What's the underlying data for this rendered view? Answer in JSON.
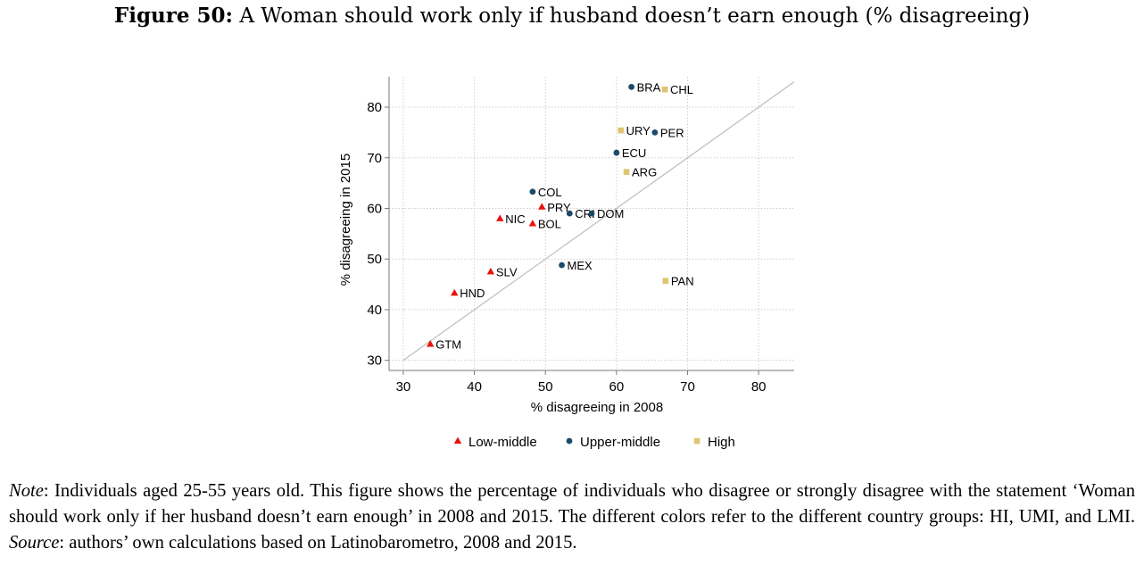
{
  "figure": {
    "label": "Figure 50:",
    "title": "A Woman should work only if husband doesn’t earn enough (% disagreeing)"
  },
  "note": {
    "note_label": "Note",
    "note_text": ": Individuals aged 25-55 years old. This figure shows the percentage of individuals who disagree or strongly disagree with the statement ‘Woman should work only if her husband doesn’t earn enough’ in 2008 and 2015. The different colors refer to the different country groups: HI, UMI, and LMI. ",
    "source_label": "Source",
    "source_text": ": authors’ own calculations based on Latinobarometro, 2008 and 2015."
  },
  "chart_data": {
    "type": "scatter",
    "xlabel": "% disagreeing in 2008",
    "ylabel": "% disagreeing in 2015",
    "xlim": [
      28,
      85
    ],
    "ylim": [
      28,
      86
    ],
    "xticks": [
      30,
      40,
      50,
      60,
      70,
      80
    ],
    "yticks": [
      30,
      40,
      50,
      60,
      70,
      80
    ],
    "grid": true,
    "reference_line": {
      "from": [
        30,
        30
      ],
      "to": [
        85,
        85
      ],
      "color": "#bdbdbd"
    },
    "legend_position": "bottom",
    "series": [
      {
        "name": "Low-middle",
        "marker": "triangle",
        "color": "#e8120f",
        "points": [
          {
            "label": "GTM",
            "x": 33.8,
            "y": 33.2
          },
          {
            "label": "HND",
            "x": 37.2,
            "y": 43.3
          },
          {
            "label": "SLV",
            "x": 42.3,
            "y": 47.5
          },
          {
            "label": "NIC",
            "x": 43.6,
            "y": 58.0
          },
          {
            "label": "BOL",
            "x": 48.2,
            "y": 57.0
          },
          {
            "label": "PRY",
            "x": 49.5,
            "y": 60.3
          }
        ]
      },
      {
        "name": "Upper-middle",
        "marker": "circle",
        "color": "#1b4a6b",
        "points": [
          {
            "label": "COL",
            "x": 48.2,
            "y": 63.3
          },
          {
            "label": "CRI",
            "x": 53.4,
            "y": 59.0
          },
          {
            "label": "DOM",
            "x": 56.5,
            "y": 59.0
          },
          {
            "label": "MEX",
            "x": 52.3,
            "y": 48.8
          },
          {
            "label": "ECU",
            "x": 60.0,
            "y": 71.0
          },
          {
            "label": "BRA",
            "x": 62.1,
            "y": 84.0
          },
          {
            "label": "PER",
            "x": 65.4,
            "y": 75.0
          }
        ]
      },
      {
        "name": "High",
        "marker": "square",
        "color": "#e0c470",
        "points": [
          {
            "label": "CHL",
            "x": 66.8,
            "y": 83.5
          },
          {
            "label": "URY",
            "x": 60.6,
            "y": 75.4
          },
          {
            "label": "ARG",
            "x": 61.4,
            "y": 67.2
          },
          {
            "label": "PAN",
            "x": 66.9,
            "y": 45.7
          }
        ]
      }
    ]
  }
}
